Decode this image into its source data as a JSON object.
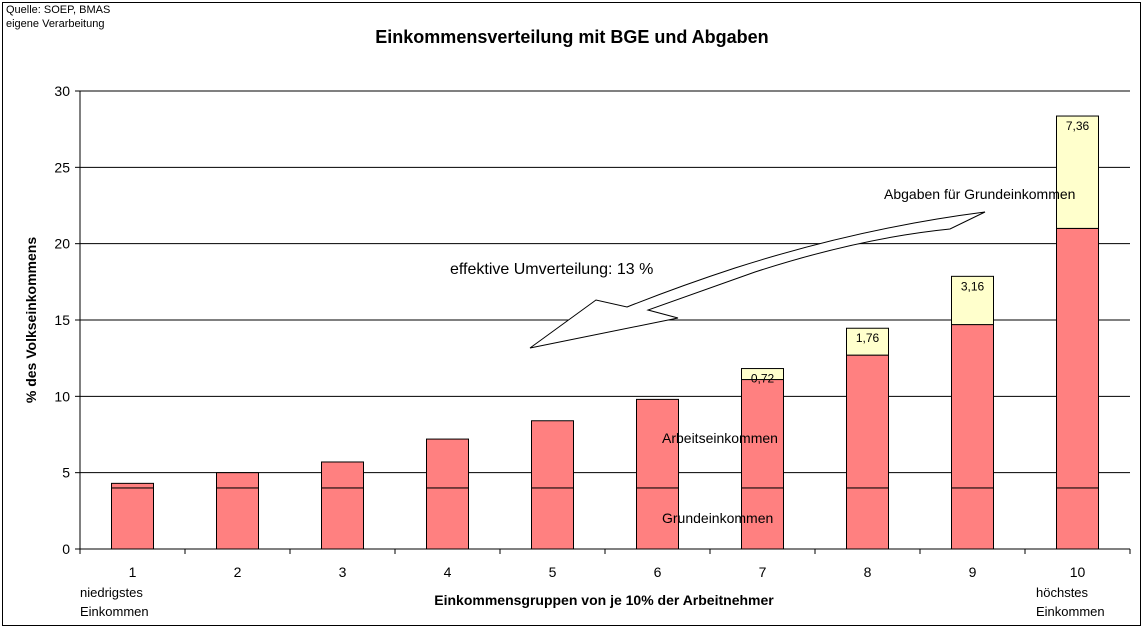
{
  "source_note": [
    "Quelle: SOEP, BMAS",
    "eigene Verarbeitung"
  ],
  "chart_data": {
    "type": "bar",
    "stacked": true,
    "title": "Einkommensverteilung mit BGE und Abgaben",
    "xlabel": "Einkommensgruppen von je 10% der Arbeitnehmer",
    "ylabel": "% des Volkseinkommens",
    "ylim": [
      0,
      30
    ],
    "yticks": [
      0,
      5,
      10,
      15,
      20,
      25,
      30
    ],
    "grid": true,
    "categories": [
      "1",
      "2",
      "3",
      "4",
      "5",
      "6",
      "7",
      "8",
      "9",
      "10"
    ],
    "category_sublabels": {
      "first": [
        "niedrigstes",
        "Einkommen"
      ],
      "last": [
        "höchstes",
        "Einkommen"
      ]
    },
    "series": [
      {
        "name": "Grundeinkommen",
        "color": "#ff8080",
        "values": [
          4,
          4,
          4,
          4,
          4,
          4,
          4,
          4,
          4,
          4
        ]
      },
      {
        "name": "Arbeitseinkommen",
        "color": "#ff8080",
        "values": [
          0.3,
          1.0,
          1.7,
          3.2,
          4.4,
          5.8,
          7.1,
          8.7,
          10.7,
          17.0
        ]
      },
      {
        "name": "Abgaben für Grundeinkommen",
        "color": "#ffffcc",
        "values": [
          0,
          0,
          0,
          0,
          0,
          0,
          0.72,
          1.76,
          3.16,
          7.36
        ]
      }
    ],
    "data_labels": [
      "",
      "",
      "",
      "",
      "",
      "",
      "0,72",
      "1,76",
      "3,16",
      "7,36"
    ],
    "annotations": {
      "redistribution": "effektive Umverteilung: 13 %",
      "tax_label": "Abgaben für Grundeinkommen",
      "work_label": "Arbeitseinkommen",
      "basic_label": "Grundeinkommen"
    }
  }
}
